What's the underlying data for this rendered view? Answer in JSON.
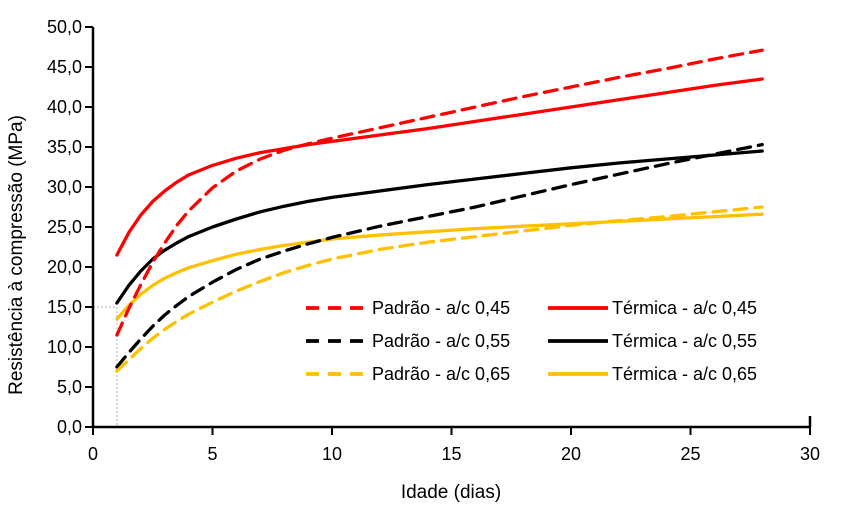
{
  "chart_data": {
    "type": "line",
    "title": "",
    "xlabel": "Idade (dias)",
    "ylabel": "Resistência à compressão (MPa)",
    "xlim": [
      0,
      30
    ],
    "ylim": [
      0,
      50
    ],
    "grid": false,
    "legend_position": "inside-bottom-center-two-columns",
    "x_ticks": [
      {
        "v": 0,
        "label": "0"
      },
      {
        "v": 5,
        "label": "5"
      },
      {
        "v": 10,
        "label": "10"
      },
      {
        "v": 15,
        "label": "15"
      },
      {
        "v": 20,
        "label": "20"
      },
      {
        "v": 25,
        "label": "25"
      },
      {
        "v": 30,
        "label": "30"
      }
    ],
    "y_ticks": [
      {
        "v": 0,
        "label": "0,0"
      },
      {
        "v": 5,
        "label": "5,0"
      },
      {
        "v": 10,
        "label": "10,0"
      },
      {
        "v": 15,
        "label": "15,0"
      },
      {
        "v": 20,
        "label": "20,0"
      },
      {
        "v": 25,
        "label": "25,0"
      },
      {
        "v": 30,
        "label": "30,0"
      },
      {
        "v": 35,
        "label": "35,0"
      },
      {
        "v": 40,
        "label": "40,0"
      },
      {
        "v": 45,
        "label": "45,0"
      },
      {
        "v": 50,
        "label": "50,0"
      }
    ],
    "reference_marker": {
      "x": 1,
      "y": 15,
      "color": "#a9b1bc"
    },
    "x": [
      1,
      1.5,
      2,
      2.5,
      3,
      3.5,
      4,
      5,
      6,
      7,
      8,
      9,
      10,
      12,
      14,
      16,
      18,
      20,
      22,
      24,
      26,
      28
    ],
    "series": [
      {
        "id": "termica-045",
        "name": "Térmica - a/c 0,45",
        "color": "#fe0000",
        "dashed": false,
        "values": [
          21.5,
          24.3,
          26.5,
          28.2,
          29.5,
          30.6,
          31.5,
          32.7,
          33.6,
          34.3,
          34.8,
          35.3,
          35.7,
          36.5,
          37.3,
          38.2,
          39.1,
          40.0,
          40.9,
          41.8,
          42.7,
          43.5
        ]
      },
      {
        "id": "termica-055",
        "name": "Térmica - a/c 0,55",
        "color": "#000000",
        "dashed": false,
        "values": [
          15.5,
          17.7,
          19.5,
          21.0,
          22.1,
          23.0,
          23.8,
          25.0,
          26.0,
          26.9,
          27.6,
          28.2,
          28.7,
          29.5,
          30.3,
          31.0,
          31.7,
          32.4,
          33.0,
          33.5,
          34.0,
          34.5
        ]
      },
      {
        "id": "termica-065",
        "name": "Térmica - a/c 0,65",
        "color": "#ffc000",
        "dashed": false,
        "values": [
          13.5,
          15.2,
          16.6,
          17.7,
          18.6,
          19.3,
          19.9,
          20.8,
          21.6,
          22.2,
          22.7,
          23.1,
          23.5,
          24.0,
          24.4,
          24.8,
          25.1,
          25.4,
          25.7,
          26.0,
          26.3,
          26.6
        ]
      },
      {
        "id": "padrao-045",
        "name": "Padrão - a/c 0,45",
        "color": "#fe0000",
        "dashed": true,
        "values": [
          11.5,
          14.8,
          17.8,
          20.6,
          23.0,
          25.2,
          27.0,
          29.9,
          32.0,
          33.5,
          34.6,
          35.4,
          36.1,
          37.4,
          38.7,
          40.0,
          41.3,
          42.5,
          43.7,
          44.8,
          46.0,
          47.1
        ]
      },
      {
        "id": "padrao-055",
        "name": "Padrão - a/c 0,55",
        "color": "#000000",
        "dashed": true,
        "values": [
          7.5,
          9.3,
          11.0,
          12.6,
          14.0,
          15.2,
          16.3,
          18.1,
          19.7,
          21.0,
          22.0,
          22.9,
          23.7,
          25.1,
          26.3,
          27.5,
          28.9,
          30.3,
          31.6,
          32.9,
          34.1,
          35.3
        ]
      },
      {
        "id": "padrao-065",
        "name": "Padrão - a/c 0,65",
        "color": "#ffc000",
        "dashed": true,
        "values": [
          7.0,
          8.4,
          9.8,
          11.1,
          12.2,
          13.2,
          14.1,
          15.6,
          17.0,
          18.2,
          19.3,
          20.2,
          21.0,
          22.2,
          23.1,
          23.8,
          24.5,
          25.2,
          25.8,
          26.3,
          26.9,
          27.5
        ]
      }
    ],
    "legend": {
      "columns": [
        [
          3,
          4,
          5
        ],
        [
          0,
          1,
          2
        ]
      ]
    },
    "axis_color": "#000000"
  }
}
